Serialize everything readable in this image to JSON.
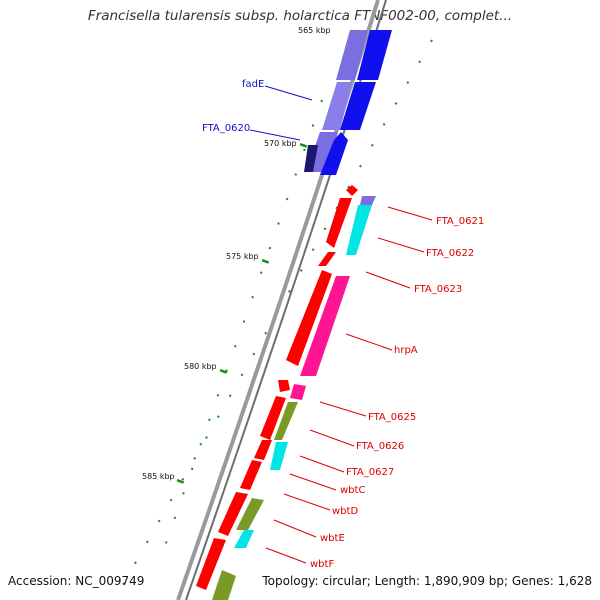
{
  "title": "Francisella tularensis subsp. holarctica FTNF002-00, complet...",
  "accession_text": "Accession: NC_009749",
  "topology_text": "Topology: circular; Length: 1,890,909 bp; Genes: 1,628",
  "scale_labels": {
    "k565": "565 kbp",
    "k570": "570 kbp",
    "k575": "575 kbp",
    "k580": "580 kbp",
    "k585": "585 kbp"
  },
  "gene_labels": {
    "fadE": "fadE",
    "FTA_0620": "FTA_0620",
    "FTA_0621": "FTA_0621",
    "FTA_0622": "FTA_0622",
    "FTA_0623": "FTA_0623",
    "hrpA": "hrpA",
    "FTA_0625": "FTA_0625",
    "FTA_0626": "FTA_0626",
    "FTA_0627": "FTA_0627",
    "wbtC": "wbtC",
    "wbtD": "wbtD",
    "wbtE": "wbtE",
    "wbtF": "wbtF"
  },
  "colors": {
    "backbone": "#9a9a9a",
    "gene_red": "#ff0000",
    "gene_blue": "#1010ee",
    "gene_purple": "#7a6ee0",
    "gene_navy": "#191970",
    "gene_cyan": "#00e5e5",
    "gene_magenta": "#ff1493",
    "gene_olive": "#7a9a28",
    "tick_green": "#1a8a1a",
    "label_blue": "#1010cc",
    "label_red": "#dd0000"
  },
  "icons": [
    "gene-arrow",
    "scale-tick"
  ]
}
